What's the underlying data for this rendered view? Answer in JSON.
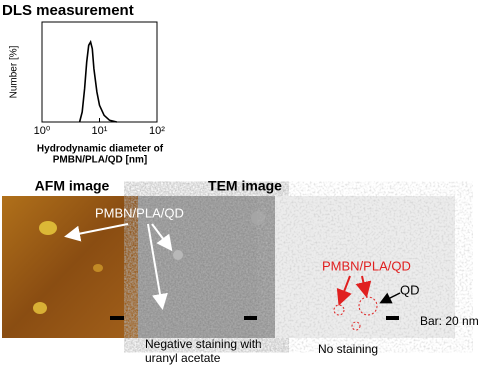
{
  "chart_data": {
    "type": "line",
    "title": "DLS measurement",
    "ylabel": "Number [%]",
    "xlabel": [
      "Hydrodynamic diameter  of",
      "PMBN/PLA/QD [nm]"
    ],
    "log_x": true,
    "xlim": [
      1,
      100
    ],
    "ylim": [
      0,
      30
    ],
    "xticks": [
      {
        "value": 1,
        "label": "10⁰"
      },
      {
        "value": 10,
        "label": "10¹"
      },
      {
        "value": 100,
        "label": "10²"
      }
    ],
    "series": [
      {
        "name": "DLS",
        "color": "#000000",
        "x": [
          4.5,
          5,
          5.5,
          6,
          6.5,
          7,
          7.5,
          8,
          9,
          10,
          12,
          15,
          20
        ],
        "values": [
          0,
          3,
          10,
          18,
          23,
          24,
          22,
          16,
          9,
          5,
          2,
          0.5,
          0
        ]
      }
    ]
  },
  "panels": {
    "afm_title": "AFM image",
    "tem_title": "TEM image",
    "label_white": "PMBN/PLA/QD",
    "label_red": "PMBN/PLA/QD",
    "qd": "QD",
    "bar": "Bar: 20 nm",
    "negative": [
      "Negative staining with",
      "uranyl acetate"
    ],
    "no_staining": "No staining"
  }
}
